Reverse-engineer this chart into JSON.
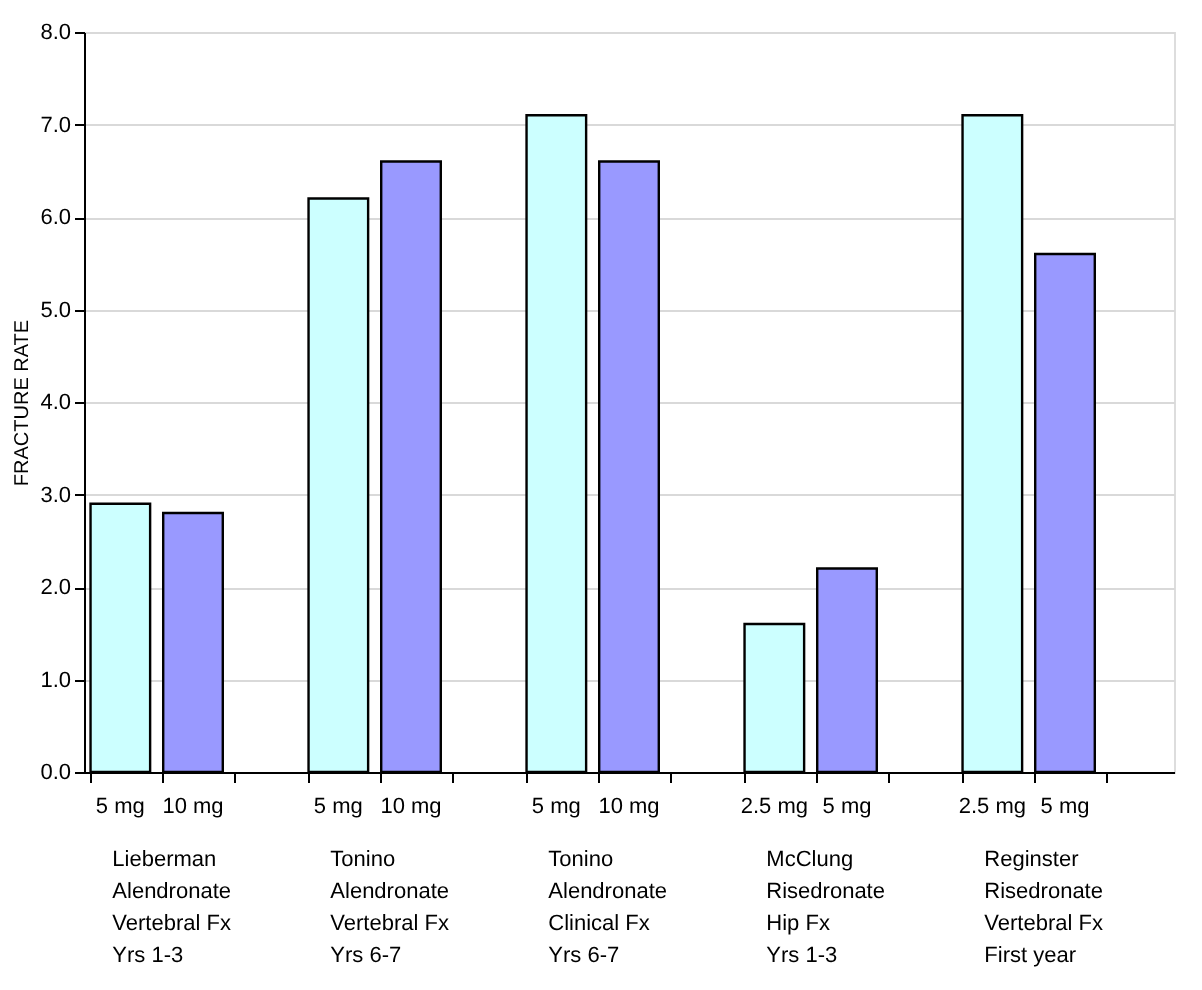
{
  "chart_data": {
    "type": "bar",
    "ylabel": "FRACTURE RATE",
    "categories": [
      "5 mg",
      "10 mg",
      "5 mg",
      "10 mg",
      "5 mg",
      "10 mg",
      "2.5 mg",
      "5 mg",
      "2.5 mg",
      "5 mg"
    ],
    "values": [
      2.9,
      2.8,
      6.2,
      6.6,
      7.1,
      6.6,
      1.6,
      2.2,
      7.1,
      5.6
    ],
    "colors": [
      "#ccffff",
      "#9999ff",
      "#ccffff",
      "#9999ff",
      "#ccffff",
      "#9999ff",
      "#ccffff",
      "#9999ff",
      "#ccffff",
      "#9999ff"
    ],
    "ylim": [
      0,
      8
    ],
    "yticks": [
      {
        "value": 0,
        "label": "0.0"
      },
      {
        "value": 1,
        "label": "1.0"
      },
      {
        "value": 2,
        "label": "2.0"
      },
      {
        "value": 3,
        "label": "3.0"
      },
      {
        "value": 4,
        "label": "4.0"
      },
      {
        "value": 5,
        "label": "5.0"
      },
      {
        "value": 6,
        "label": "6.0"
      },
      {
        "value": 7,
        "label": "7.0"
      },
      {
        "value": 8,
        "label": "8.0"
      }
    ],
    "grid": "y",
    "annotations": [
      "Lieberman\nAlendronate\nVertebral Fx\nYrs 1-3",
      "Tonino\nAlendronate\nVertebral Fx\nYrs 6-7",
      "Tonino\nAlendronate\nClinical Fx\nYrs 6-7",
      "McClung\nRisedronate\nHip Fx\nYrs 1-3",
      "Reginster\nRisedronate\nVertebral Fx\nFirst year"
    ]
  }
}
